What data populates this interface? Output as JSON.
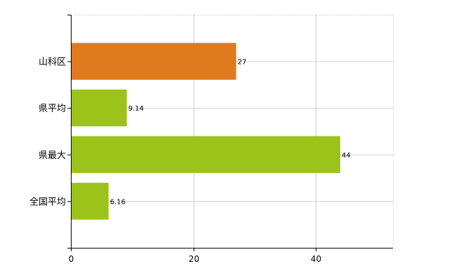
{
  "chart_data": {
    "type": "bar",
    "orientation": "horizontal",
    "categories": [
      "山科区",
      "県平均",
      "県最大",
      "全国平均"
    ],
    "values": [
      27,
      9.14,
      44,
      6.16
    ],
    "value_labels": [
      "27",
      "9.14",
      "44",
      "6.16"
    ],
    "bar_colors": [
      "#e07a1f",
      "#9cc31a",
      "#9cc31a",
      "#9cc31a"
    ],
    "xlim": [
      0,
      52.6
    ],
    "xticks": [
      0,
      20,
      40
    ],
    "xtick_labels": [
      "0",
      "20",
      "40"
    ],
    "grid": true,
    "title": "",
    "xlabel": "",
    "ylabel": ""
  }
}
